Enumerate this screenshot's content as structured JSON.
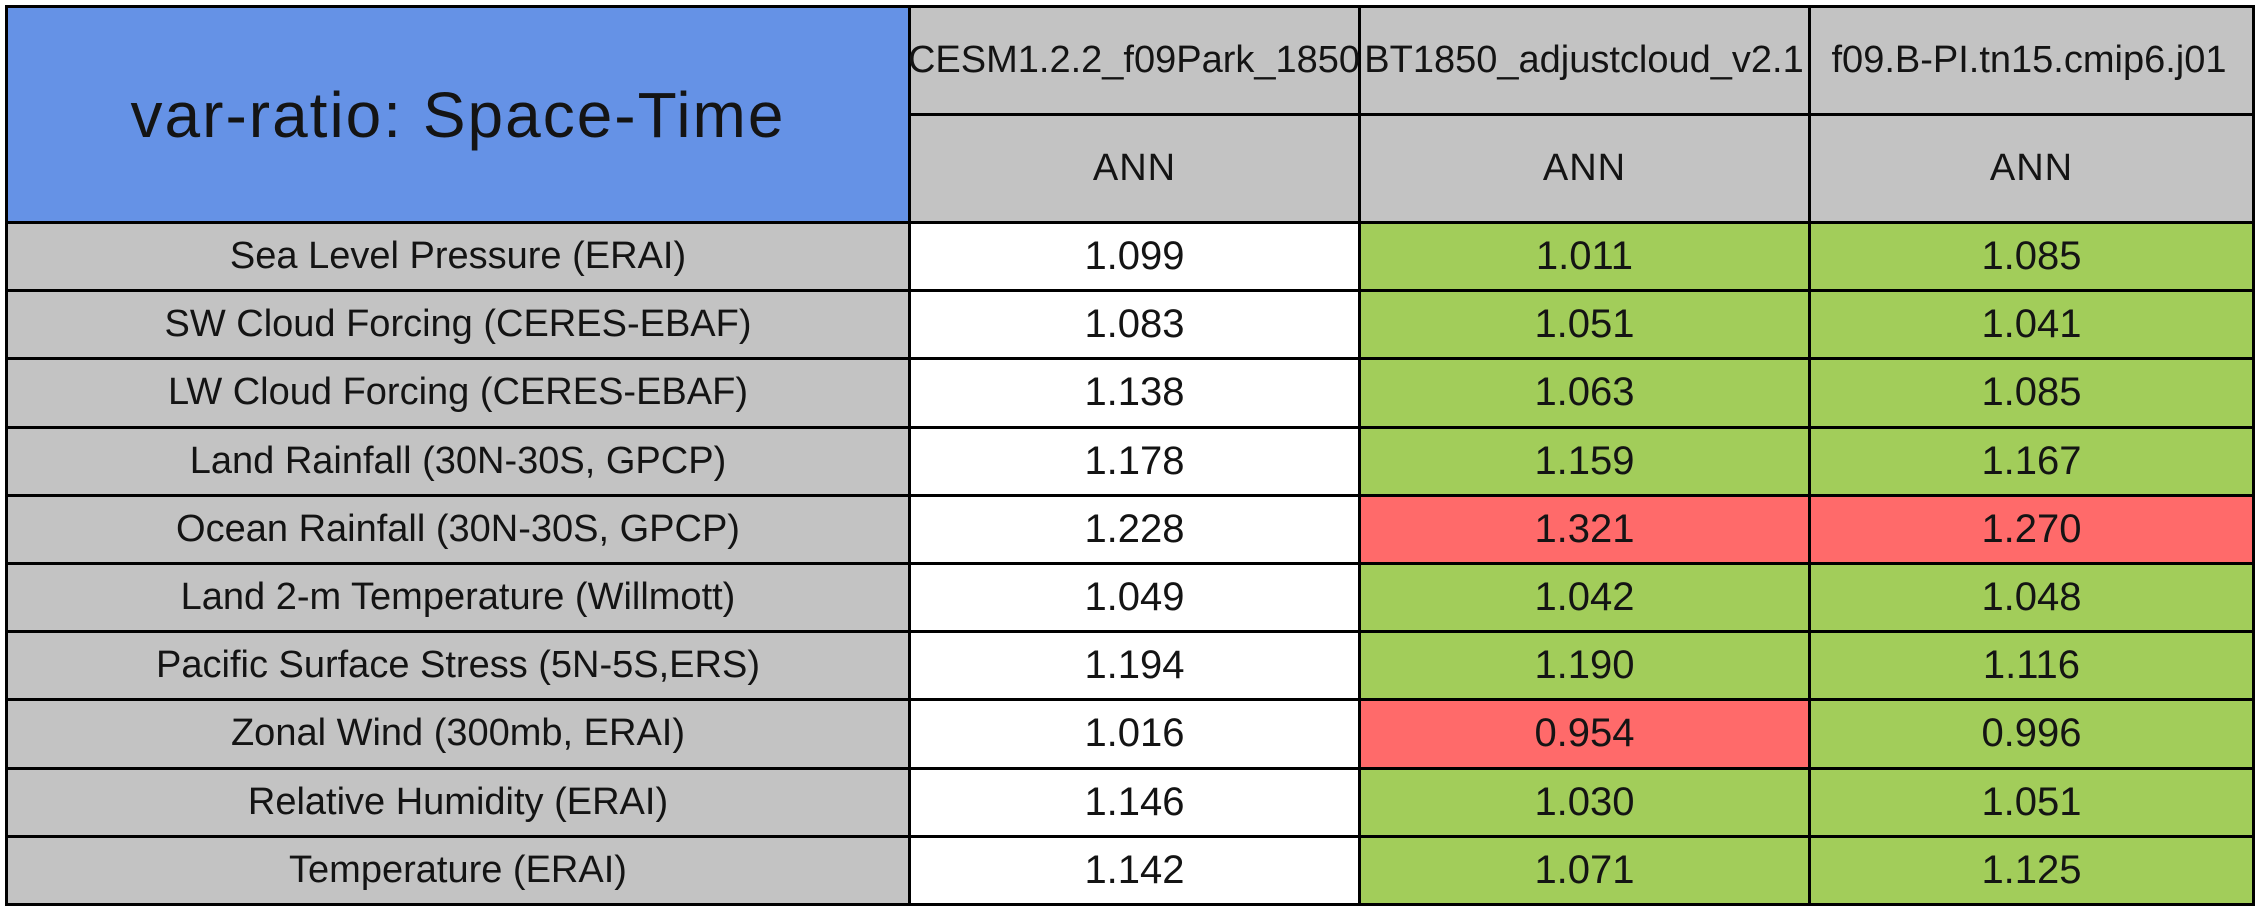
{
  "title": "var-ratio: Space-Time",
  "colors": {
    "blue": "#6592E6",
    "gray": "#C3C3C3",
    "green": "#A2CD5A",
    "red": "#FF6A6A",
    "white": "#FFFFFF",
    "border": "#000000",
    "text": "#141414"
  },
  "columns": [
    {
      "model": "CESM1.2.2_f09Park_1850",
      "season": "ANN"
    },
    {
      "model": "BT1850_adjustcloud_v2.1",
      "season": "ANN"
    },
    {
      "model": "f09.B-PI.tn15.cmip6.j01",
      "season": "ANN"
    }
  ],
  "rows": [
    {
      "label": "Sea Level Pressure (ERAI)",
      "values": [
        "1.099",
        "1.011",
        "1.085"
      ],
      "colors": [
        "white",
        "green",
        "green"
      ]
    },
    {
      "label": "SW Cloud Forcing (CERES-EBAF)",
      "values": [
        "1.083",
        "1.051",
        "1.041"
      ],
      "colors": [
        "white",
        "green",
        "green"
      ]
    },
    {
      "label": "LW Cloud Forcing (CERES-EBAF)",
      "values": [
        "1.138",
        "1.063",
        "1.085"
      ],
      "colors": [
        "white",
        "green",
        "green"
      ]
    },
    {
      "label": "Land Rainfall (30N-30S, GPCP)",
      "values": [
        "1.178",
        "1.159",
        "1.167"
      ],
      "colors": [
        "white",
        "green",
        "green"
      ]
    },
    {
      "label": "Ocean Rainfall (30N-30S, GPCP)",
      "values": [
        "1.228",
        "1.321",
        "1.270"
      ],
      "colors": [
        "white",
        "red",
        "red"
      ]
    },
    {
      "label": "Land 2-m Temperature (Willmott)",
      "values": [
        "1.049",
        "1.042",
        "1.048"
      ],
      "colors": [
        "white",
        "green",
        "green"
      ]
    },
    {
      "label": "Pacific Surface Stress (5N-5S,ERS)",
      "values": [
        "1.194",
        "1.190",
        "1.116"
      ],
      "colors": [
        "white",
        "green",
        "green"
      ]
    },
    {
      "label": "Zonal Wind (300mb, ERAI)",
      "values": [
        "1.016",
        "0.954",
        "0.996"
      ],
      "colors": [
        "white",
        "red",
        "green"
      ]
    },
    {
      "label": "Relative Humidity (ERAI)",
      "values": [
        "1.146",
        "1.030",
        "1.051"
      ],
      "colors": [
        "white",
        "green",
        "green"
      ]
    },
    {
      "label": "Temperature (ERAI)",
      "values": [
        "1.142",
        "1.071",
        "1.125"
      ],
      "colors": [
        "white",
        "green",
        "green"
      ]
    }
  ],
  "chart_data": {
    "type": "table",
    "title": "var-ratio: Space-Time",
    "columns": [
      "CESM1.2.2_f09Park_1850",
      "BT1850_adjustcloud_v2.1",
      "f09.B-PI.tn15.cmip6.j01"
    ],
    "column_season_labels": [
      "ANN",
      "ANN",
      "ANN"
    ],
    "row_labels": [
      "Sea Level Pressure (ERAI)",
      "SW Cloud Forcing (CERES-EBAF)",
      "LW Cloud Forcing (CERES-EBAF)",
      "Land Rainfall (30N-30S, GPCP)",
      "Ocean Rainfall (30N-30S, GPCP)",
      "Land 2-m Temperature (Willmott)",
      "Pacific Surface Stress (5N-5S,ERS)",
      "Zonal Wind (300mb, ERAI)",
      "Relative Humidity (ERAI)",
      "Temperature (ERAI)"
    ],
    "values": [
      [
        1.099,
        1.011,
        1.085
      ],
      [
        1.083,
        1.051,
        1.041
      ],
      [
        1.138,
        1.063,
        1.085
      ],
      [
        1.178,
        1.159,
        1.167
      ],
      [
        1.228,
        1.321,
        1.27
      ],
      [
        1.049,
        1.042,
        1.048
      ],
      [
        1.194,
        1.19,
        1.116
      ],
      [
        1.016,
        0.954,
        0.996
      ],
      [
        1.146,
        1.03,
        1.051
      ],
      [
        1.142,
        1.071,
        1.125
      ]
    ],
    "cell_status": [
      [
        "plain",
        "good",
        "good"
      ],
      [
        "plain",
        "good",
        "good"
      ],
      [
        "plain",
        "good",
        "good"
      ],
      [
        "plain",
        "good",
        "good"
      ],
      [
        "plain",
        "bad",
        "bad"
      ],
      [
        "plain",
        "good",
        "good"
      ],
      [
        "plain",
        "good",
        "good"
      ],
      [
        "plain",
        "bad",
        "good"
      ],
      [
        "plain",
        "good",
        "good"
      ],
      [
        "plain",
        "good",
        "good"
      ]
    ],
    "status_colors": {
      "plain": "#FFFFFF",
      "good": "#A2CD5A",
      "bad": "#FF6A6A"
    }
  }
}
